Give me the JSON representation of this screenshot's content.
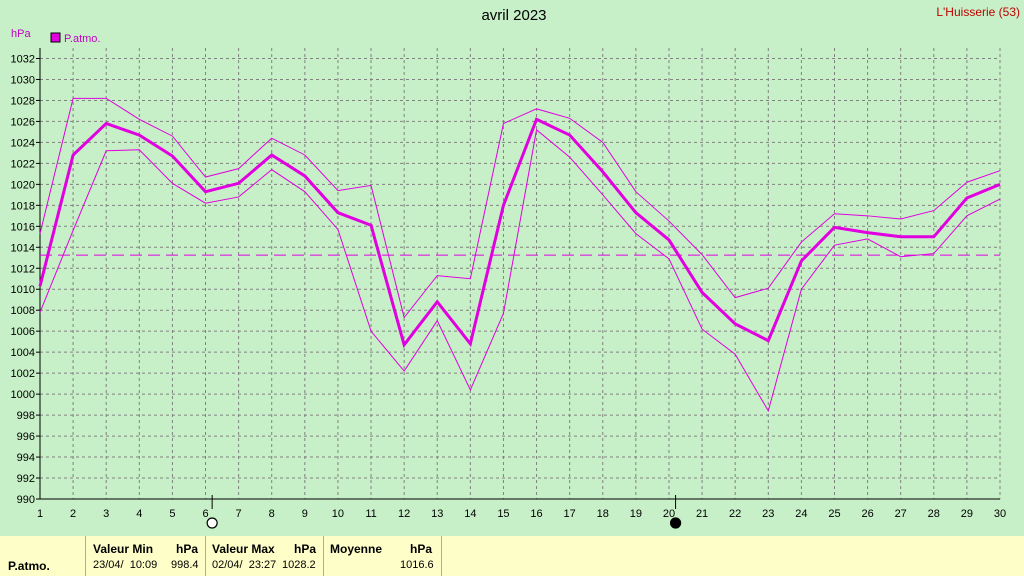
{
  "header": {
    "title": "avril 2023",
    "station": "L'Huisserie (53)",
    "unit": "hPa",
    "legend_label": "P.atmo."
  },
  "chart_data": {
    "type": "line",
    "title": "avril 2023",
    "ylabel": "hPa",
    "ylim": [
      990,
      1033
    ],
    "yticks": [
      990,
      992,
      994,
      996,
      998,
      1000,
      1002,
      1004,
      1006,
      1008,
      1010,
      1012,
      1014,
      1016,
      1018,
      1020,
      1022,
      1024,
      1026,
      1028,
      1030,
      1032
    ],
    "x": [
      1,
      2,
      3,
      4,
      5,
      6,
      7,
      8,
      9,
      10,
      11,
      12,
      13,
      14,
      15,
      16,
      17,
      18,
      19,
      20,
      21,
      22,
      23,
      24,
      25,
      26,
      27,
      28,
      29,
      30
    ],
    "series": [
      {
        "name": "P.atmo.",
        "role": "mean",
        "color": "#e000e0",
        "values": [
          1010.3,
          1022.8,
          1025.8,
          1024.7,
          1022.7,
          1019.3,
          1020.1,
          1022.8,
          1020.8,
          1017.3,
          1016.1,
          1004.7,
          1008.8,
          1004.8,
          1018.0,
          1026.2,
          1024.7,
          1021.2,
          1017.3,
          1014.7,
          1009.7,
          1006.7,
          1005.1,
          1012.7,
          1015.9,
          1015.4,
          1015.0,
          1015.0,
          1018.7,
          1020.0
        ]
      },
      {
        "role": "max",
        "color": "#e000e0",
        "values": [
          1015.3,
          1028.2,
          1028.2,
          1026.2,
          1024.6,
          1020.7,
          1021.5,
          1024.4,
          1022.8,
          1019.4,
          1019.9,
          1007.3,
          1011.3,
          1011.0,
          1025.8,
          1027.2,
          1026.3,
          1024.0,
          1019.3,
          1016.5,
          1013.3,
          1009.2,
          1010.1,
          1014.5,
          1017.2,
          1017.0,
          1016.7,
          1017.5,
          1020.2,
          1021.3
        ]
      },
      {
        "role": "min",
        "color": "#e000e0",
        "values": [
          1007.8,
          1015.6,
          1023.2,
          1023.3,
          1020.1,
          1018.2,
          1018.8,
          1021.4,
          1019.3,
          1015.7,
          1006.0,
          1002.2,
          1007.0,
          1000.4,
          1007.7,
          1025.2,
          1022.6,
          1019.0,
          1015.3,
          1012.9,
          1006.2,
          1003.8,
          998.4,
          1010.0,
          1014.2,
          1014.8,
          1013.1,
          1013.4,
          1017.0,
          1018.6
        ]
      }
    ],
    "reference_line": {
      "role": "average",
      "value": 1013.25,
      "style": "dashed",
      "color": "#e000e0"
    },
    "moon_phases": [
      {
        "x": 6,
        "phase": "full-moon"
      },
      {
        "x": 20,
        "phase": "new-moon"
      }
    ],
    "grid": true,
    "legend": "top-left"
  },
  "footer": {
    "row_label": "P.atmo.",
    "min": {
      "title": "Valeur Min",
      "unit": "hPa",
      "datetime": "23/04/  10:09",
      "value": "998.4"
    },
    "max": {
      "title": "Valeur Max",
      "unit": "hPa",
      "datetime": "02/04/  23:27",
      "value": "1028.2"
    },
    "avg": {
      "title": "Moyenne",
      "unit": "hPa",
      "value": "1016.6"
    }
  }
}
